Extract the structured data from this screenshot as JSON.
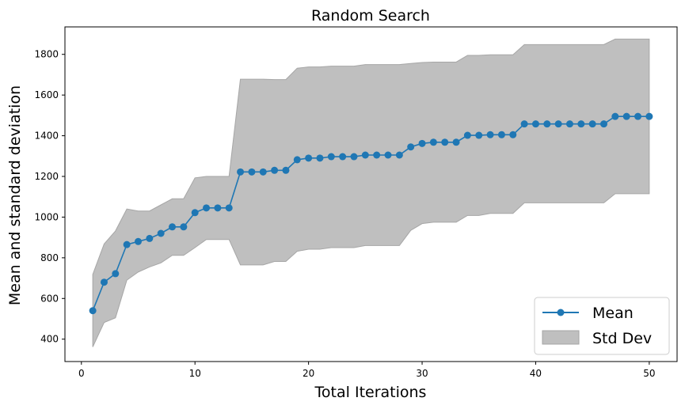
{
  "chart_data": {
    "type": "line",
    "title": "Random Search",
    "xlabel": "Total Iterations",
    "ylabel": "Mean and standard deviation",
    "xlim": [
      -1.45,
      52.45
    ],
    "ylim": [
      290,
      1935
    ],
    "xticks": [
      0,
      10,
      20,
      30,
      40,
      50
    ],
    "yticks": [
      400,
      600,
      800,
      1000,
      1200,
      1400,
      1600,
      1800
    ],
    "grid": false,
    "legend_position": "lower-right",
    "colors": {
      "mean": "#1f77b4",
      "band": "#bfbfbf",
      "band_edge": "#a6a6a6"
    },
    "x": [
      1,
      2,
      3,
      4,
      5,
      6,
      7,
      8,
      9,
      10,
      11,
      12,
      13,
      14,
      15,
      16,
      17,
      18,
      19,
      20,
      21,
      22,
      23,
      24,
      25,
      26,
      27,
      28,
      29,
      30,
      31,
      32,
      33,
      34,
      35,
      36,
      37,
      38,
      39,
      40,
      41,
      42,
      43,
      44,
      45,
      46,
      47,
      48,
      49,
      50
    ],
    "series": [
      {
        "name": "Mean",
        "values": [
          540,
          680,
          722,
          865,
          880,
          895,
          920,
          952,
          952,
          1022,
          1045,
          1045,
          1045,
          1222,
          1222,
          1222,
          1230,
          1230,
          1282,
          1290,
          1290,
          1297,
          1297,
          1297,
          1305,
          1305,
          1305,
          1305,
          1345,
          1362,
          1368,
          1368,
          1368,
          1402,
          1402,
          1405,
          1405,
          1405,
          1458,
          1458,
          1458,
          1458,
          1458,
          1458,
          1458,
          1458,
          1495,
          1495,
          1495,
          1495
        ]
      }
    ],
    "std_band": {
      "name": "Std Dev",
      "upper": [
        718,
        868,
        932,
        1040,
        1030,
        1030,
        1060,
        1090,
        1090,
        1193,
        1200,
        1200,
        1200,
        1678,
        1678,
        1678,
        1676,
        1676,
        1732,
        1738,
        1738,
        1742,
        1742,
        1742,
        1750,
        1750,
        1750,
        1750,
        1755,
        1760,
        1762,
        1762,
        1762,
        1795,
        1795,
        1798,
        1798,
        1798,
        1848,
        1848,
        1848,
        1848,
        1848,
        1848,
        1848,
        1848,
        1875,
        1875,
        1875,
        1875
      ],
      "lower": [
        362,
        482,
        505,
        690,
        730,
        755,
        775,
        812,
        812,
        850,
        890,
        890,
        890,
        765,
        765,
        765,
        782,
        782,
        832,
        842,
        842,
        850,
        850,
        850,
        860,
        860,
        860,
        860,
        935,
        968,
        975,
        975,
        975,
        1008,
        1008,
        1018,
        1018,
        1018,
        1070,
        1070,
        1070,
        1070,
        1070,
        1070,
        1070,
        1070,
        1115,
        1115,
        1115,
        1115
      ]
    },
    "legend": [
      "Mean",
      "Std Dev"
    ]
  }
}
